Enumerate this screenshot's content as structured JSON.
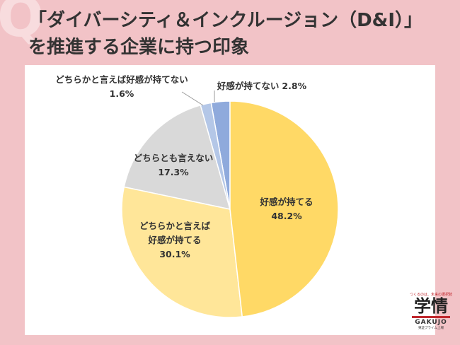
{
  "question_mark": "Q",
  "brand": {
    "tagline": "つくるのは、未来の選択肢",
    "logo": "学情",
    "logo_en": "GAKUJO",
    "listing": "東証プライム上場"
  },
  "chart_data": {
    "type": "pie",
    "title": "「ダイバーシティ＆インクルージョン（D&I）」を推進する企業に持つ印象",
    "categories": [
      "好感が持てる",
      "どちらかと言えば好感が持てる",
      "どちらとも言えない",
      "どちらかと言えば好感が持てない",
      "好感が持てない"
    ],
    "values": [
      48.2,
      30.1,
      17.3,
      1.6,
      2.8
    ],
    "value_labels": [
      "48.2%",
      "30.1%",
      "17.3%",
      "1.6%",
      "2.8%"
    ],
    "colors": [
      "#ffd966",
      "#ffe699",
      "#d9d9d9",
      "#b4c7e7",
      "#8faadc"
    ]
  }
}
